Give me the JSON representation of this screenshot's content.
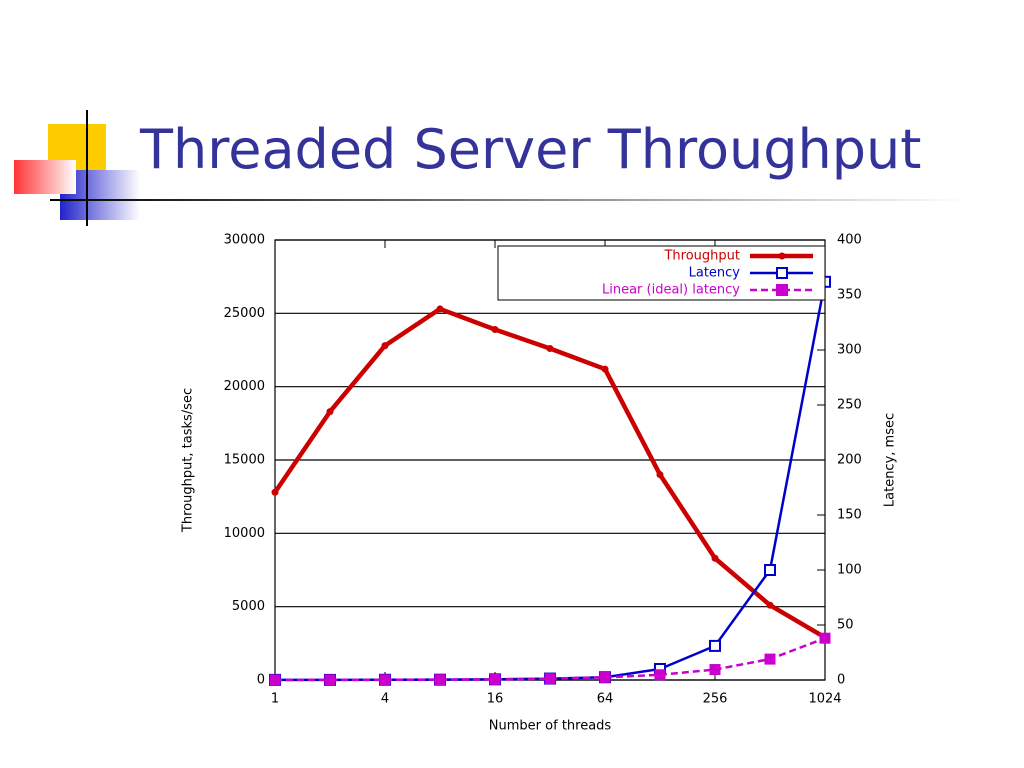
{
  "chart_data": {
    "type": "line",
    "title": "Threaded Server Throughput",
    "x_label": "Number of threads",
    "y_label": "Throughput, tasks/sec",
    "y2_label": "Latency, msec",
    "x": [
      1,
      2,
      4,
      8,
      16,
      32,
      64,
      128,
      256,
      512,
      1024
    ],
    "xscale": "log",
    "xlim": [
      1,
      1024
    ],
    "xticks": [
      1,
      4,
      16,
      64,
      256,
      1024
    ],
    "ylim": [
      0,
      30000
    ],
    "yticks": [
      0,
      5000,
      10000,
      15000,
      20000,
      25000,
      30000
    ],
    "y2lim": [
      0,
      400
    ],
    "y2ticks": [
      0,
      50,
      100,
      150,
      200,
      250,
      300,
      350,
      400
    ],
    "grid": true,
    "legend": "top-right",
    "series": [
      {
        "name": "Throughput",
        "color": "#cc0000",
        "marker": "dot",
        "dashed": false,
        "values": [
          12800,
          18300,
          22800,
          25300,
          23900,
          22600,
          21200,
          14000,
          8300,
          5100,
          2900
        ]
      },
      {
        "name": "Latency",
        "color": "#0000cc",
        "marker": "open-square",
        "dashed": false,
        "axis": "y2",
        "values": [
          0.1,
          0.1,
          0.2,
          0.3,
          0.6,
          1.3,
          2.5,
          10,
          31,
          100,
          362
        ]
      },
      {
        "name": "Linear (ideal) latency",
        "color": "#cc00cc",
        "marker": "filled-square",
        "dashed": true,
        "axis": "y2",
        "values": [
          0.04,
          0.07,
          0.15,
          0.3,
          0.6,
          1.2,
          2.4,
          4.75,
          9.5,
          19,
          38
        ]
      }
    ]
  }
}
